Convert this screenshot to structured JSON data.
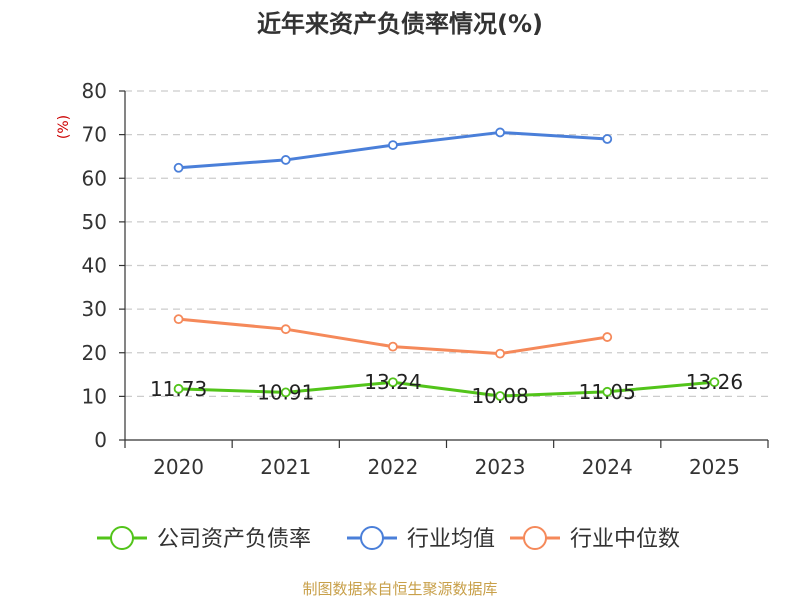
{
  "chart_data": {
    "type": "line",
    "title": "近年来资产负债率情况(%)",
    "ylabel": "(%)",
    "xlabel": "",
    "categories": [
      "2020",
      "2021",
      "2022",
      "2023",
      "2024",
      "2025"
    ],
    "ylim": [
      0,
      80
    ],
    "yticks": [
      0,
      10,
      20,
      30,
      40,
      50,
      60,
      70,
      80
    ],
    "grid": true,
    "legend_position": "bottom",
    "series": [
      {
        "name": "公司资产负债率",
        "color": "#52c41a",
        "values": [
          11.73,
          10.91,
          13.24,
          10.08,
          11.05,
          13.26
        ],
        "labels": [
          "11.73",
          "10.91",
          "13.24",
          "10.08",
          "11.05",
          "13.26"
        ]
      },
      {
        "name": "行业均值",
        "color": "#4a7fd9",
        "values": [
          62.4,
          64.2,
          67.6,
          70.5,
          69.0,
          null
        ]
      },
      {
        "name": "行业中位数",
        "color": "#f5895a",
        "values": [
          27.7,
          25.4,
          21.4,
          19.8,
          23.6,
          null
        ]
      }
    ],
    "source": "制图数据来自恒生聚源数据库",
    "source_color": "#c8a04a",
    "ylabel_color": "#cc0000"
  }
}
